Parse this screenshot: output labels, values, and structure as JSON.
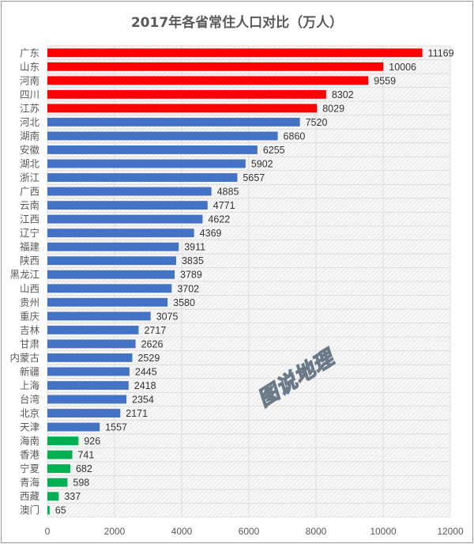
{
  "chart_data": {
    "type": "bar",
    "orientation": "horizontal",
    "title": "2017年各省常住人口对比（万人）",
    "categories": [
      "广东",
      "山东",
      "河南",
      "四川",
      "江苏",
      "河北",
      "湖南",
      "安徽",
      "湖北",
      "浙江",
      "广西",
      "云南",
      "江西",
      "辽宁",
      "福建",
      "陕西",
      "黑龙江",
      "山西",
      "贵州",
      "重庆",
      "吉林",
      "甘肃",
      "内蒙古",
      "新疆",
      "上海",
      "台湾",
      "北京",
      "天津",
      "海南",
      "香港",
      "宁夏",
      "青海",
      "西藏",
      "澳门"
    ],
    "values": [
      11169,
      10006,
      9559,
      8302,
      8029,
      7520,
      6860,
      6255,
      5902,
      5657,
      4885,
      4771,
      4622,
      4369,
      3911,
      3835,
      3789,
      3702,
      3580,
      3075,
      2717,
      2626,
      2529,
      2445,
      2418,
      2354,
      2171,
      1557,
      926,
      741,
      682,
      598,
      337,
      65
    ],
    "bar_groups": [
      {
        "color": "#ff0000",
        "from": 0,
        "to": 4
      },
      {
        "color": "#4472c4",
        "from": 5,
        "to": 27
      },
      {
        "color": "#00b050",
        "from": 28,
        "to": 33
      }
    ],
    "xlim": [
      0,
      12000
    ],
    "xticks": [
      "0",
      "2000",
      "4000",
      "6000",
      "8000",
      "10000",
      "12000"
    ],
    "xlabel": "",
    "ylabel": "",
    "grid": true,
    "data_labels": true
  },
  "watermark": "图说地理"
}
